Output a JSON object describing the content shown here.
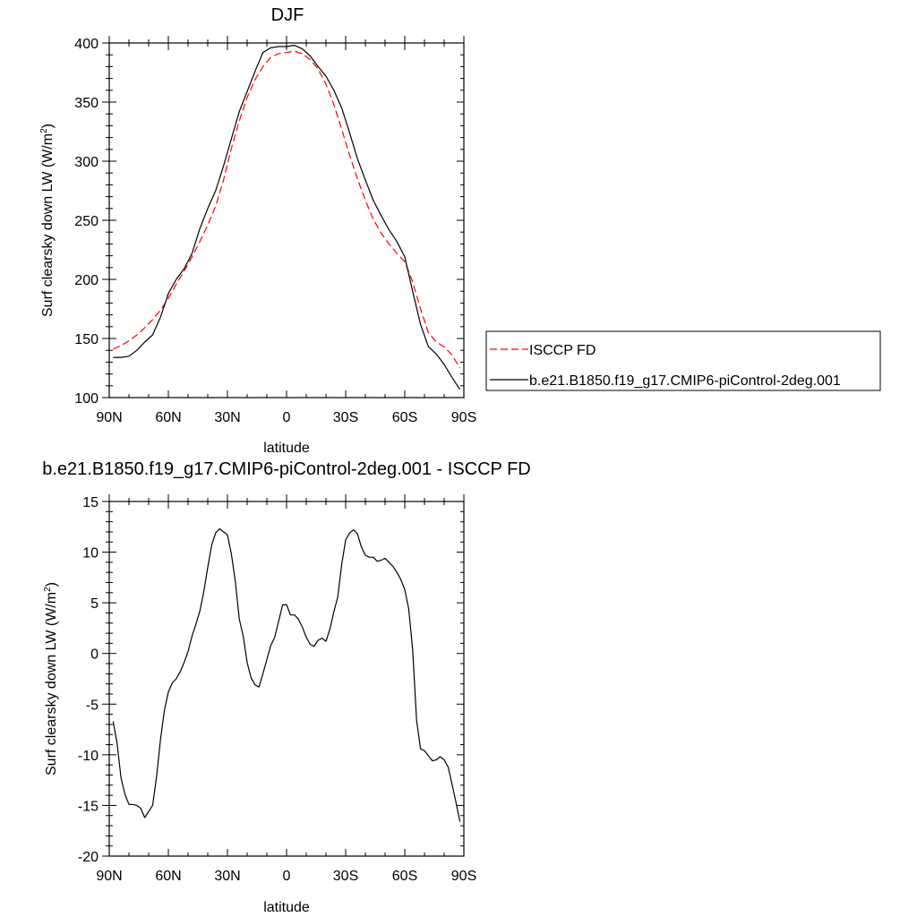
{
  "chart_data": [
    {
      "type": "line",
      "title": "DJF",
      "xlabel": "latitude",
      "ylabel": "Surf clearsky down LW (W/m",
      "ylabel_sup": "2",
      "ylabel_end": ")",
      "xlim": [
        90,
        -90
      ],
      "ylim": [
        100,
        400
      ],
      "x_ticks": [
        90,
        60,
        30,
        0,
        -30,
        -60,
        -90
      ],
      "x_tick_labels": [
        "90N",
        "60N",
        "30N",
        "0",
        "30S",
        "60S",
        "90S"
      ],
      "y_ticks": [
        100,
        150,
        200,
        250,
        300,
        350,
        400
      ],
      "y_tick_labels": [
        "100",
        "150",
        "200",
        "250",
        "300",
        "350",
        "400"
      ],
      "series": [
        {
          "name": "ISCCP FD",
          "color": "#ff0000",
          "dash": "dashed",
          "x": [
            88,
            84,
            80,
            76,
            72,
            68,
            64,
            60,
            56,
            52,
            48,
            44,
            40,
            36,
            32,
            28,
            24,
            20,
            16,
            12,
            8,
            4,
            0,
            -4,
            -8,
            -12,
            -16,
            -20,
            -24,
            -28,
            -32,
            -36,
            -40,
            -44,
            -48,
            -52,
            -56,
            -60,
            -64,
            -68,
            -72,
            -76,
            -80,
            -84,
            -88
          ],
          "y": [
            141,
            144,
            148,
            153,
            159,
            166,
            174,
            184,
            196,
            207,
            219,
            232,
            246,
            262,
            284,
            311,
            334,
            354,
            369,
            380,
            388,
            391,
            392,
            393,
            391,
            386,
            378,
            365,
            348,
            327,
            305,
            285,
            267,
            251,
            239,
            230,
            222,
            215,
            198,
            175,
            155,
            147,
            143,
            136,
            125
          ]
        },
        {
          "name": "b.e21.B1850.f19_g17.CMIP6-piControl-2deg.001",
          "color": "#000000",
          "dash": "solid",
          "x": [
            88,
            84,
            80,
            76,
            72,
            68,
            64,
            60,
            56,
            52,
            48,
            44,
            40,
            36,
            32,
            28,
            24,
            20,
            16,
            12,
            8,
            4,
            0,
            -4,
            -8,
            -12,
            -16,
            -20,
            -24,
            -28,
            -32,
            -36,
            -40,
            -44,
            -48,
            -52,
            -56,
            -60,
            -64,
            -68,
            -72,
            -76,
            -80,
            -84,
            -88
          ],
          "y": [
            134,
            134,
            135,
            140,
            147,
            153,
            168,
            188,
            200,
            209,
            222,
            243,
            260,
            275,
            296,
            319,
            342,
            359,
            376,
            392,
            396,
            397,
            397,
            398,
            395,
            389,
            380,
            372,
            360,
            345,
            324,
            302,
            284,
            267,
            254,
            242,
            232,
            219,
            190,
            162,
            143,
            137,
            128,
            117,
            107
          ]
        }
      ],
      "legend_placement": "outside right"
    },
    {
      "type": "line",
      "title": "b.e21.B1850.f19_g17.CMIP6-piControl-2deg.001 - ISCCP FD",
      "xlabel": "latitude",
      "ylabel": "Surf clearsky down LW (W/m",
      "ylabel_sup": "2",
      "ylabel_end": ")",
      "xlim": [
        90,
        -90
      ],
      "ylim": [
        -20,
        15
      ],
      "x_ticks": [
        90,
        60,
        30,
        0,
        -30,
        -60,
        -90
      ],
      "x_tick_labels": [
        "90N",
        "60N",
        "30N",
        "0",
        "30S",
        "60S",
        "90S"
      ],
      "y_ticks": [
        -20,
        -15,
        -10,
        -5,
        0,
        5,
        10,
        15
      ],
      "y_tick_labels": [
        "-20",
        "-15",
        "-10",
        "-5",
        "0",
        "5",
        "10",
        "15"
      ],
      "series": [
        {
          "color": "#000000",
          "dash": "solid",
          "x": [
            88,
            86,
            84,
            82,
            80,
            78,
            76,
            74,
            72,
            70,
            68,
            66,
            64,
            62,
            60,
            58,
            56,
            54,
            52,
            50,
            48,
            46,
            44,
            42,
            40,
            38,
            36,
            34,
            32,
            30,
            28,
            26,
            24,
            22,
            20,
            18,
            16,
            14,
            12,
            10,
            8,
            6,
            4,
            2,
            0,
            -2,
            -4,
            -6,
            -8,
            -10,
            -12,
            -14,
            -16,
            -18,
            -20,
            -22,
            -24,
            -26,
            -28,
            -30,
            -32,
            -34,
            -36,
            -38,
            -40,
            -42,
            -44,
            -46,
            -48,
            -50,
            -52,
            -54,
            -56,
            -58,
            -60,
            -62,
            -64,
            -66,
            -68,
            -70,
            -72,
            -74,
            -76,
            -78,
            -80,
            -82,
            -84,
            -86,
            -88
          ],
          "y": [
            -6.7,
            -8.9,
            -12.3,
            -13.9,
            -14.9,
            -14.9,
            -15.0,
            -15.3,
            -16.2,
            -15.6,
            -15.0,
            -12.2,
            -8.5,
            -5.6,
            -3.8,
            -2.9,
            -2.5,
            -1.8,
            -0.9,
            0.2,
            1.7,
            2.9,
            4.2,
            6.1,
            8.5,
            10.7,
            11.9,
            12.3,
            12.0,
            11.7,
            9.8,
            7.1,
            3.4,
            1.7,
            -0.9,
            -2.4,
            -3.1,
            -3.3,
            -2.0,
            -0.6,
            0.8,
            1.6,
            3.2,
            4.8,
            4.8,
            3.8,
            3.8,
            3.4,
            2.6,
            1.6,
            0.9,
            0.7,
            1.3,
            1.5,
            1.2,
            2.4,
            4.1,
            5.6,
            8.8,
            11.2,
            11.9,
            12.2,
            11.8,
            10.5,
            9.7,
            9.5,
            9.5,
            9.1,
            9.2,
            9.4,
            9.0,
            8.6,
            8.0,
            7.3,
            6.3,
            4.4,
            0.4,
            -6.6,
            -9.4,
            -9.6,
            -10.1,
            -10.6,
            -10.5,
            -10.2,
            -10.5,
            -11.2,
            -12.9,
            -14.7,
            -16.6
          ]
        }
      ]
    }
  ]
}
